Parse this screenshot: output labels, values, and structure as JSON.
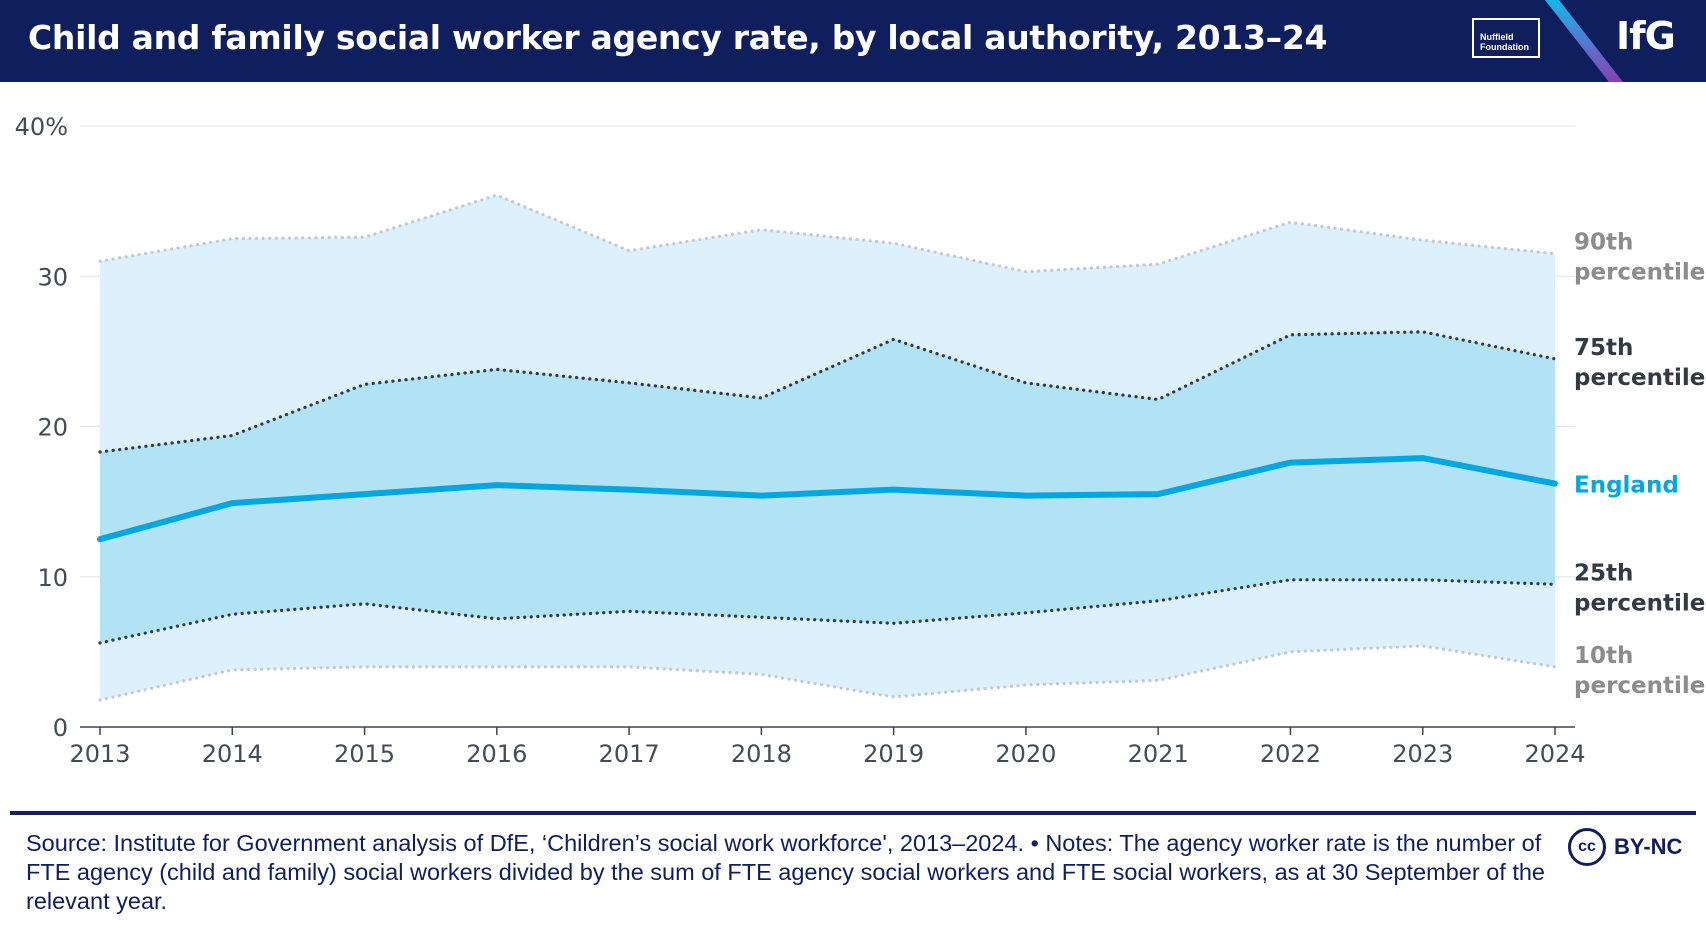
{
  "header": {
    "title": "Child and family social worker agency rate, by local authority, 2013–24",
    "partner_logo_line1": "Nuffield",
    "partner_logo_line2": "Foundation",
    "brand_logo": "IfG"
  },
  "chart_data": {
    "type": "line",
    "title": "Child and family social worker agency rate, by local authority, 2013–24",
    "xlabel": "",
    "ylabel": "",
    "x": [
      2013,
      2014,
      2015,
      2016,
      2017,
      2018,
      2019,
      2020,
      2021,
      2022,
      2023,
      2024
    ],
    "ylim": [
      0,
      40
    ],
    "yticks": [
      0,
      10,
      20,
      30,
      40
    ],
    "ytick_labels": [
      "0",
      "10",
      "20",
      "30",
      "40%"
    ],
    "grid": true,
    "legend": "direct labels at right end of lines",
    "series": [
      {
        "name": "90th percentile",
        "label_lines": [
          "90th",
          "percentile"
        ],
        "style": "dotted",
        "color": "#c4c9cf",
        "label_color": "#8c8c8c",
        "values": [
          31.0,
          32.5,
          32.6,
          35.4,
          31.7,
          33.1,
          32.2,
          30.3,
          30.8,
          33.6,
          32.4,
          31.5
        ]
      },
      {
        "name": "75th percentile",
        "label_lines": [
          "75th",
          "percentile"
        ],
        "style": "dotted",
        "color": "#333a44",
        "label_color": "#333a44",
        "values": [
          18.3,
          19.4,
          22.8,
          23.8,
          22.9,
          21.9,
          25.8,
          22.9,
          21.8,
          26.1,
          26.3,
          24.5
        ]
      },
      {
        "name": "England",
        "label_lines": [
          "England"
        ],
        "style": "solid",
        "color": "#00a7e1",
        "label_color": "#00a7e1",
        "values": [
          12.5,
          14.9,
          15.5,
          16.1,
          15.8,
          15.4,
          15.8,
          15.4,
          15.5,
          17.6,
          17.9,
          16.2
        ]
      },
      {
        "name": "25th percentile",
        "label_lines": [
          "25th",
          "percentile"
        ],
        "style": "dotted",
        "color": "#333a44",
        "label_color": "#333a44",
        "values": [
          5.6,
          7.5,
          8.2,
          7.2,
          7.7,
          7.3,
          6.9,
          7.6,
          8.4,
          9.8,
          9.8,
          9.5
        ]
      },
      {
        "name": "10th percentile",
        "label_lines": [
          "10th",
          "percentile"
        ],
        "style": "dotted",
        "color": "#c4c9cf",
        "label_color": "#8c8c8c",
        "values": [
          1.8,
          3.8,
          4.0,
          4.0,
          4.0,
          3.5,
          2.0,
          2.8,
          3.1,
          5.0,
          5.4,
          4.0
        ]
      }
    ],
    "bands": [
      {
        "name": "10th–90th percentile",
        "lower": "10th percentile",
        "upper": "90th percentile",
        "color": "#dcf1fb"
      },
      {
        "name": "25th–75th percentile",
        "lower": "25th percentile",
        "upper": "75th percentile",
        "color": "#b2e3f5"
      }
    ]
  },
  "footer": {
    "note": "Source: Institute for Government analysis of DfE, ‘Children’s social work workforce', 2013–2024. • Notes: The agency worker rate is the number of FTE agency (child and family) social workers divided by the sum of FTE agency social workers and FTE social workers, as at 30 September of the relevant year.",
    "license_icon": "cc-icon",
    "license_icon_text": "cc",
    "license_label": "BY-NC"
  },
  "colors": {
    "navy": "#0f1e5c",
    "accent": "#00a7e1",
    "band_outer": "#dcf1fb",
    "band_inner": "#b2e3f5"
  }
}
